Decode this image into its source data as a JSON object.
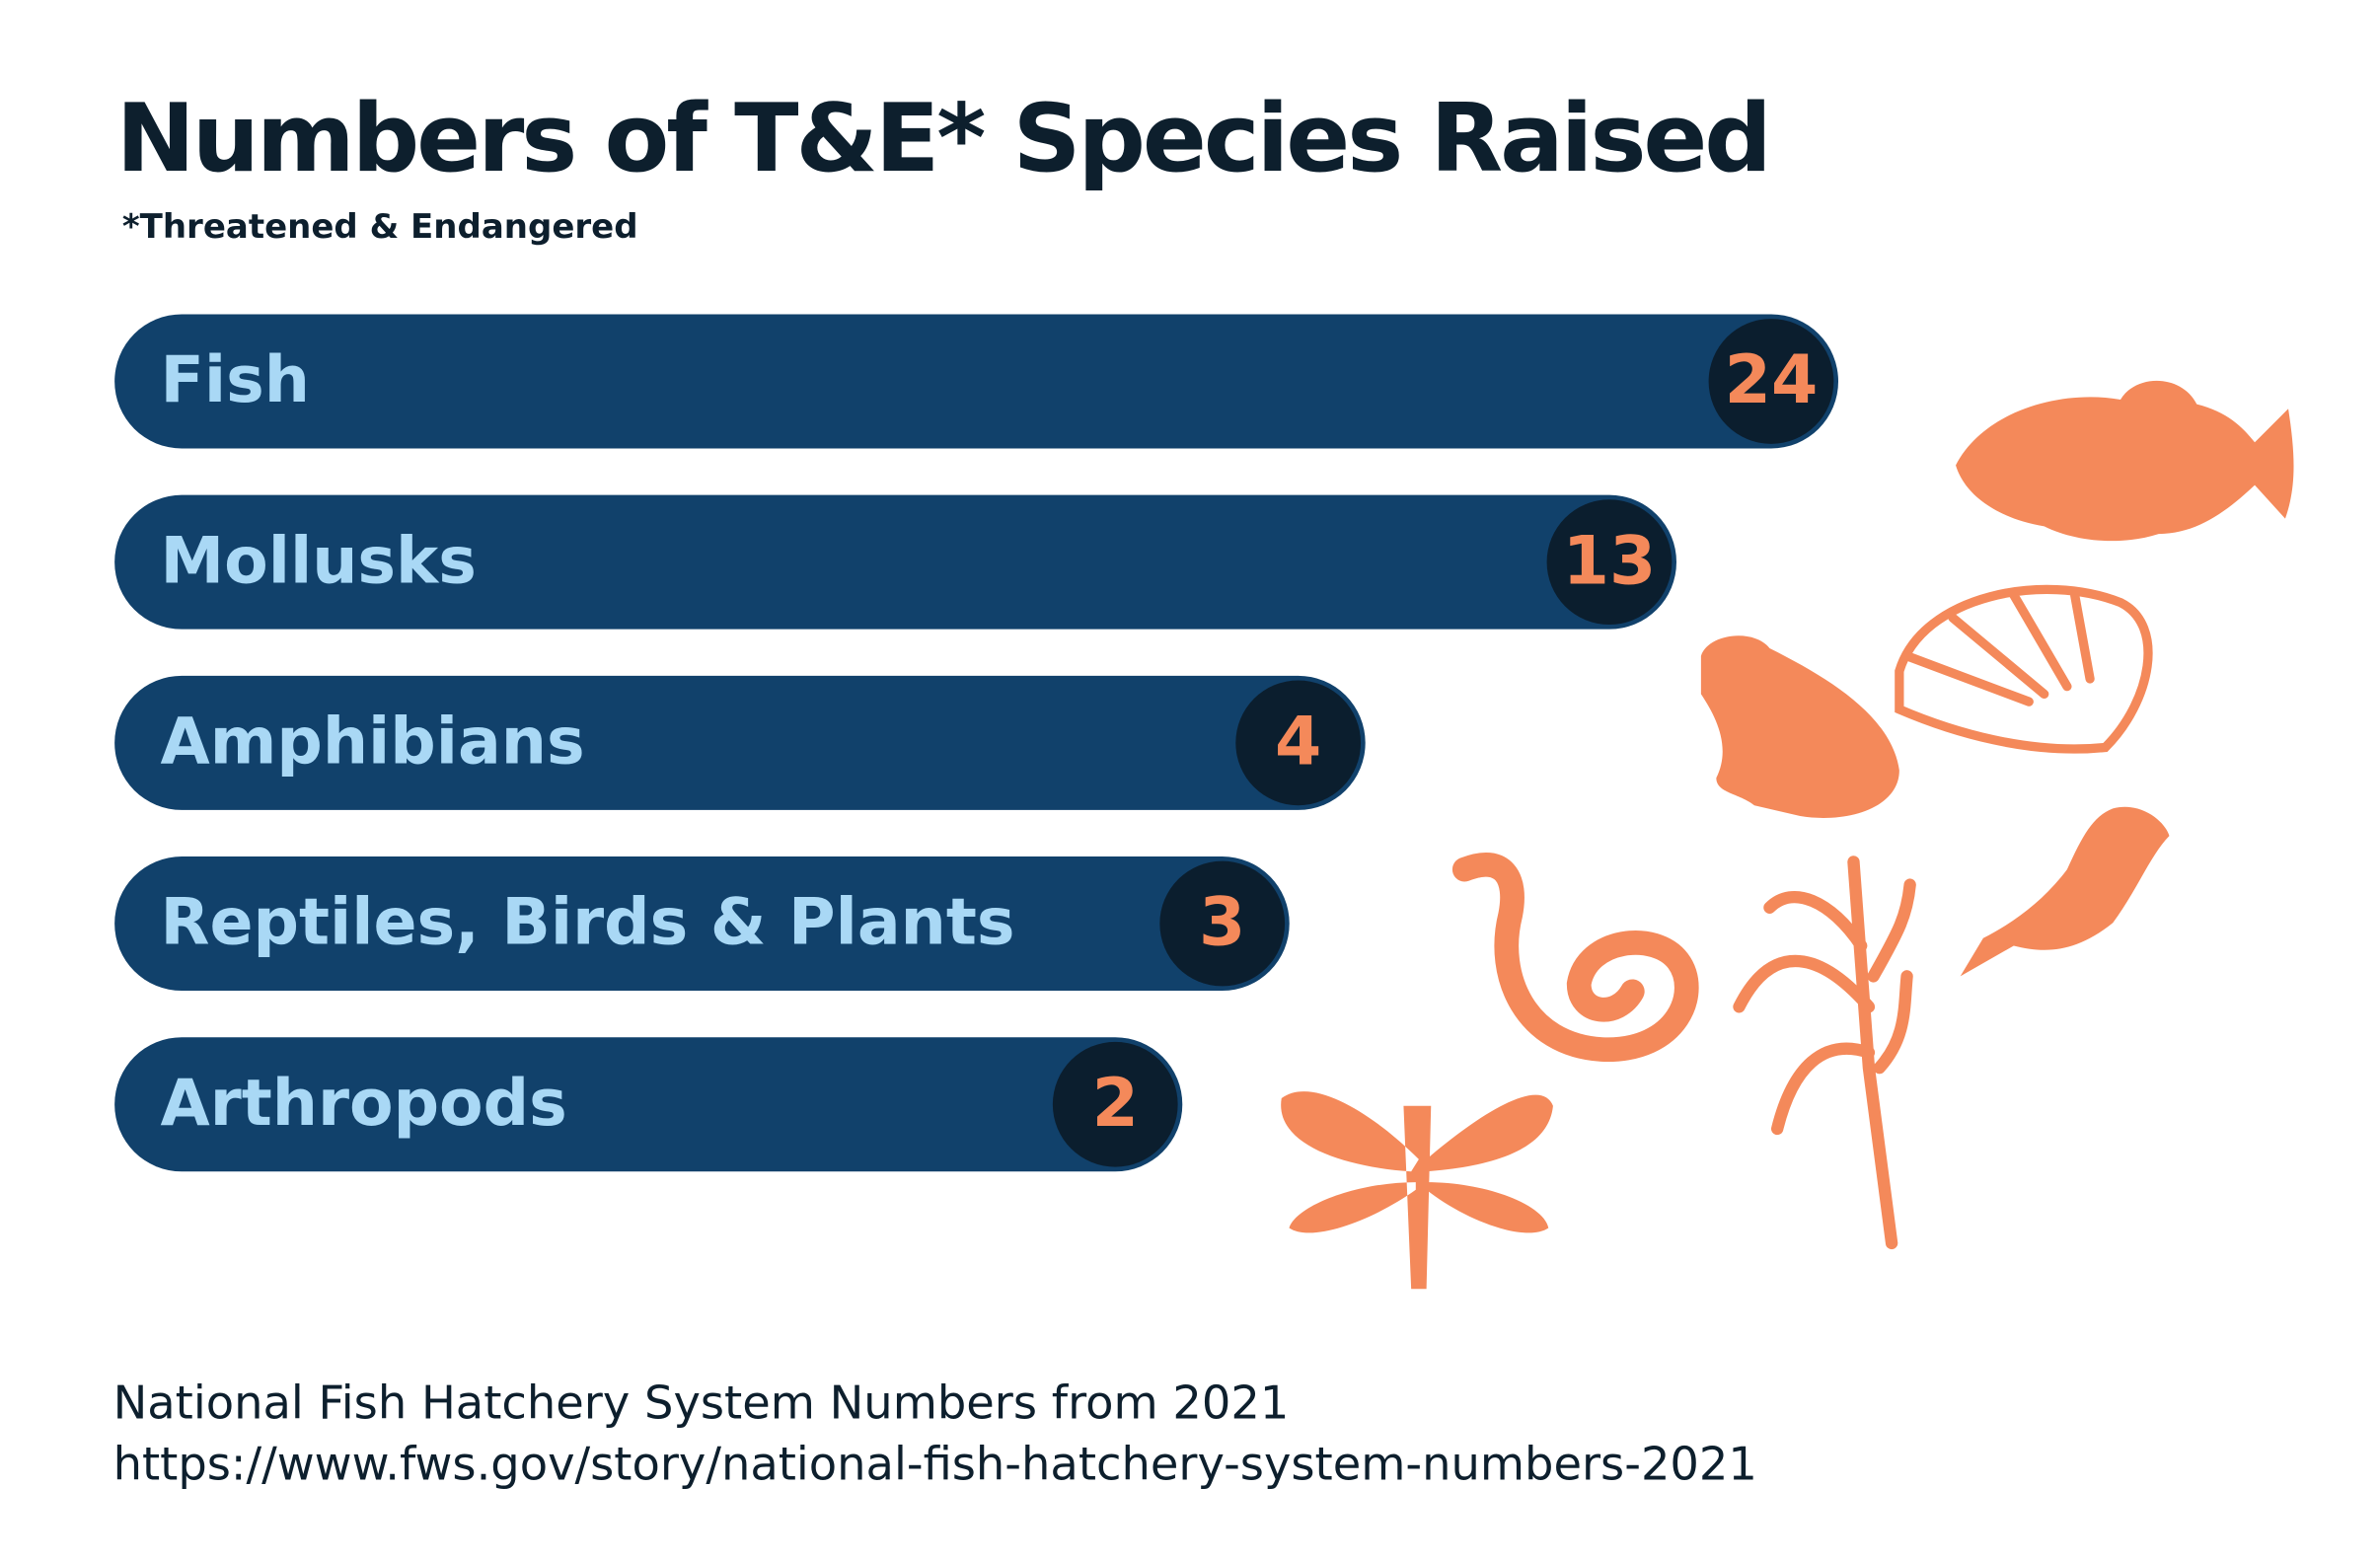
{
  "chart_data": {
    "type": "bar",
    "orientation": "horizontal",
    "title": "Numbers of T&E* Species Raised",
    "subtitle": "*Threatened & Endangered",
    "categories": [
      "Fish",
      "Mollusks",
      "Amphibians",
      "Reptiles, Birds & Plants",
      "Arthropods"
    ],
    "values": [
      24,
      13,
      4,
      3,
      2
    ],
    "color": "#11416b",
    "badge_color": "#0b1e2e",
    "label_color": "#a9d8f5",
    "value_color": "#f4895a",
    "source_lines": [
      "National Fish Hatchery System Numbers from 2021",
      "https://www.fws.gov/story/national-fish-hatchery-system-numbers-2021"
    ]
  }
}
